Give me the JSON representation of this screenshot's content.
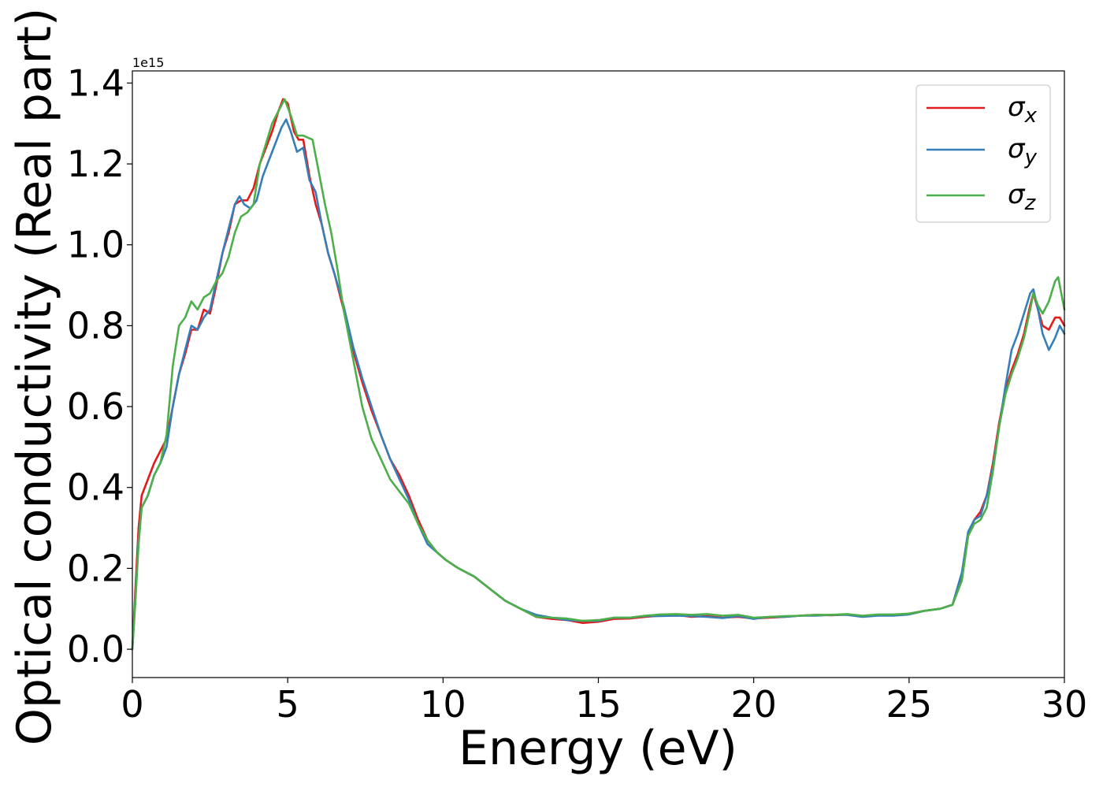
{
  "chart_data": {
    "type": "line",
    "xlabel": "Energy (eV)",
    "ylabel": "Optical conductivity (Real part)",
    "y_offset_text": "1e15",
    "xlim": [
      0,
      30
    ],
    "ylim": [
      -0.07,
      1.43
    ],
    "x_ticks": [
      0,
      5,
      10,
      15,
      20,
      25,
      30
    ],
    "x_tick_labels": [
      "0",
      "5",
      "10",
      "15",
      "20",
      "25",
      "30"
    ],
    "y_ticks": [
      0.0,
      0.2,
      0.4,
      0.6,
      0.8,
      1.0,
      1.2,
      1.4
    ],
    "y_tick_labels": [
      "0.0",
      "0.2",
      "0.4",
      "0.6",
      "0.8",
      "1.0",
      "1.2",
      "1.4"
    ],
    "grid": false,
    "legend_position": "top-right",
    "series": [
      {
        "name": "σ",
        "subscript": "x",
        "color": "#e41a1c",
        "points": [
          [
            0,
            0.0
          ],
          [
            0.1,
            0.15
          ],
          [
            0.2,
            0.3
          ],
          [
            0.3,
            0.38
          ],
          [
            0.5,
            0.42
          ],
          [
            0.7,
            0.46
          ],
          [
            0.9,
            0.49
          ],
          [
            1.1,
            0.52
          ],
          [
            1.3,
            0.6
          ],
          [
            1.5,
            0.68
          ],
          [
            1.7,
            0.73
          ],
          [
            1.9,
            0.79
          ],
          [
            2.1,
            0.79
          ],
          [
            2.3,
            0.84
          ],
          [
            2.5,
            0.83
          ],
          [
            2.7,
            0.9
          ],
          [
            2.9,
            0.98
          ],
          [
            3.1,
            1.03
          ],
          [
            3.3,
            1.1
          ],
          [
            3.5,
            1.11
          ],
          [
            3.7,
            1.11
          ],
          [
            3.9,
            1.14
          ],
          [
            4.1,
            1.2
          ],
          [
            4.3,
            1.24
          ],
          [
            4.5,
            1.28
          ],
          [
            4.7,
            1.33
          ],
          [
            4.85,
            1.36
          ],
          [
            5.0,
            1.35
          ],
          [
            5.2,
            1.28
          ],
          [
            5.35,
            1.26
          ],
          [
            5.5,
            1.26
          ],
          [
            5.7,
            1.17
          ],
          [
            5.9,
            1.1
          ],
          [
            6.1,
            1.05
          ],
          [
            6.3,
            0.98
          ],
          [
            6.5,
            0.93
          ],
          [
            6.8,
            0.84
          ],
          [
            7.1,
            0.74
          ],
          [
            7.4,
            0.66
          ],
          [
            7.7,
            0.59
          ],
          [
            8.0,
            0.53
          ],
          [
            8.3,
            0.47
          ],
          [
            8.6,
            0.43
          ],
          [
            8.9,
            0.38
          ],
          [
            9.2,
            0.32
          ],
          [
            9.5,
            0.27
          ],
          [
            9.8,
            0.24
          ],
          [
            10.1,
            0.22
          ],
          [
            10.5,
            0.2
          ],
          [
            11.0,
            0.18
          ],
          [
            11.5,
            0.15
          ],
          [
            12.0,
            0.12
          ],
          [
            12.5,
            0.1
          ],
          [
            13.0,
            0.08
          ],
          [
            13.5,
            0.075
          ],
          [
            14.0,
            0.072
          ],
          [
            14.5,
            0.065
          ],
          [
            15.0,
            0.068
          ],
          [
            15.5,
            0.075
          ],
          [
            16.0,
            0.076
          ],
          [
            16.5,
            0.08
          ],
          [
            17.0,
            0.083
          ],
          [
            17.5,
            0.085
          ],
          [
            18.0,
            0.08
          ],
          [
            18.5,
            0.082
          ],
          [
            19.0,
            0.078
          ],
          [
            19.5,
            0.08
          ],
          [
            20.0,
            0.076
          ],
          [
            20.5,
            0.078
          ],
          [
            21.0,
            0.08
          ],
          [
            21.5,
            0.083
          ],
          [
            22.0,
            0.085
          ],
          [
            22.5,
            0.084
          ],
          [
            23.0,
            0.086
          ],
          [
            23.5,
            0.082
          ],
          [
            24.0,
            0.085
          ],
          [
            24.5,
            0.084
          ],
          [
            25.0,
            0.088
          ],
          [
            25.5,
            0.095
          ],
          [
            26.0,
            0.1
          ],
          [
            26.4,
            0.11
          ],
          [
            26.7,
            0.18
          ],
          [
            26.9,
            0.28
          ],
          [
            27.1,
            0.32
          ],
          [
            27.3,
            0.34
          ],
          [
            27.5,
            0.38
          ],
          [
            27.7,
            0.46
          ],
          [
            27.9,
            0.56
          ],
          [
            28.1,
            0.64
          ],
          [
            28.3,
            0.69
          ],
          [
            28.5,
            0.73
          ],
          [
            28.7,
            0.78
          ],
          [
            28.9,
            0.85
          ],
          [
            29.0,
            0.88
          ],
          [
            29.15,
            0.84
          ],
          [
            29.3,
            0.8
          ],
          [
            29.5,
            0.79
          ],
          [
            29.7,
            0.82
          ],
          [
            29.85,
            0.82
          ],
          [
            30.0,
            0.8
          ]
        ]
      },
      {
        "name": "σ",
        "subscript": "y",
        "color": "#377eb8",
        "points": [
          [
            0,
            0.0
          ],
          [
            0.1,
            0.13
          ],
          [
            0.2,
            0.27
          ],
          [
            0.3,
            0.35
          ],
          [
            0.5,
            0.38
          ],
          [
            0.7,
            0.43
          ],
          [
            0.9,
            0.46
          ],
          [
            1.1,
            0.5
          ],
          [
            1.3,
            0.6
          ],
          [
            1.5,
            0.68
          ],
          [
            1.7,
            0.74
          ],
          [
            1.9,
            0.8
          ],
          [
            2.1,
            0.79
          ],
          [
            2.3,
            0.82
          ],
          [
            2.5,
            0.84
          ],
          [
            2.7,
            0.91
          ],
          [
            2.9,
            0.98
          ],
          [
            3.1,
            1.04
          ],
          [
            3.3,
            1.1
          ],
          [
            3.45,
            1.12
          ],
          [
            3.6,
            1.1
          ],
          [
            3.8,
            1.09
          ],
          [
            4.0,
            1.11
          ],
          [
            4.2,
            1.17
          ],
          [
            4.4,
            1.21
          ],
          [
            4.6,
            1.25
          ],
          [
            4.8,
            1.29
          ],
          [
            4.95,
            1.31
          ],
          [
            5.1,
            1.28
          ],
          [
            5.3,
            1.23
          ],
          [
            5.5,
            1.24
          ],
          [
            5.7,
            1.16
          ],
          [
            5.9,
            1.13
          ],
          [
            6.1,
            1.05
          ],
          [
            6.3,
            0.98
          ],
          [
            6.5,
            0.93
          ],
          [
            6.8,
            0.85
          ],
          [
            7.1,
            0.75
          ],
          [
            7.4,
            0.67
          ],
          [
            7.7,
            0.6
          ],
          [
            8.0,
            0.53
          ],
          [
            8.3,
            0.47
          ],
          [
            8.6,
            0.42
          ],
          [
            8.9,
            0.37
          ],
          [
            9.2,
            0.31
          ],
          [
            9.5,
            0.26
          ],
          [
            9.8,
            0.24
          ],
          [
            10.1,
            0.22
          ],
          [
            10.5,
            0.2
          ],
          [
            11.0,
            0.18
          ],
          [
            11.5,
            0.15
          ],
          [
            12.0,
            0.12
          ],
          [
            12.5,
            0.1
          ],
          [
            13.0,
            0.085
          ],
          [
            13.5,
            0.078
          ],
          [
            14.0,
            0.072
          ],
          [
            14.5,
            0.07
          ],
          [
            15.0,
            0.07
          ],
          [
            15.5,
            0.078
          ],
          [
            16.0,
            0.078
          ],
          [
            16.5,
            0.082
          ],
          [
            17.0,
            0.082
          ],
          [
            17.5,
            0.083
          ],
          [
            18.0,
            0.082
          ],
          [
            18.5,
            0.08
          ],
          [
            19.0,
            0.077
          ],
          [
            19.5,
            0.082
          ],
          [
            20.0,
            0.075
          ],
          [
            20.5,
            0.08
          ],
          [
            21.0,
            0.08
          ],
          [
            21.5,
            0.083
          ],
          [
            22.0,
            0.083
          ],
          [
            22.5,
            0.085
          ],
          [
            23.0,
            0.085
          ],
          [
            23.5,
            0.08
          ],
          [
            24.0,
            0.083
          ],
          [
            24.5,
            0.083
          ],
          [
            25.0,
            0.086
          ],
          [
            25.5,
            0.095
          ],
          [
            26.0,
            0.1
          ],
          [
            26.4,
            0.11
          ],
          [
            26.7,
            0.19
          ],
          [
            26.9,
            0.29
          ],
          [
            27.1,
            0.32
          ],
          [
            27.3,
            0.33
          ],
          [
            27.5,
            0.38
          ],
          [
            27.7,
            0.45
          ],
          [
            27.9,
            0.55
          ],
          [
            28.1,
            0.65
          ],
          [
            28.3,
            0.74
          ],
          [
            28.5,
            0.78
          ],
          [
            28.7,
            0.83
          ],
          [
            28.9,
            0.88
          ],
          [
            29.0,
            0.89
          ],
          [
            29.15,
            0.84
          ],
          [
            29.3,
            0.78
          ],
          [
            29.5,
            0.74
          ],
          [
            29.7,
            0.77
          ],
          [
            29.85,
            0.8
          ],
          [
            30.0,
            0.78
          ]
        ]
      },
      {
        "name": "σ",
        "subscript": "z",
        "color": "#4daf4a",
        "points": [
          [
            0,
            0.0
          ],
          [
            0.1,
            0.12
          ],
          [
            0.2,
            0.26
          ],
          [
            0.3,
            0.35
          ],
          [
            0.5,
            0.38
          ],
          [
            0.7,
            0.43
          ],
          [
            0.9,
            0.46
          ],
          [
            1.1,
            0.53
          ],
          [
            1.3,
            0.7
          ],
          [
            1.5,
            0.8
          ],
          [
            1.7,
            0.82
          ],
          [
            1.9,
            0.86
          ],
          [
            2.1,
            0.84
          ],
          [
            2.3,
            0.87
          ],
          [
            2.5,
            0.88
          ],
          [
            2.7,
            0.91
          ],
          [
            2.9,
            0.93
          ],
          [
            3.1,
            0.97
          ],
          [
            3.3,
            1.03
          ],
          [
            3.5,
            1.07
          ],
          [
            3.7,
            1.08
          ],
          [
            3.9,
            1.1
          ],
          [
            4.1,
            1.2
          ],
          [
            4.3,
            1.25
          ],
          [
            4.5,
            1.3
          ],
          [
            4.7,
            1.33
          ],
          [
            4.9,
            1.36
          ],
          [
            5.1,
            1.32
          ],
          [
            5.3,
            1.27
          ],
          [
            5.5,
            1.27
          ],
          [
            5.8,
            1.26
          ],
          [
            6.0,
            1.18
          ],
          [
            6.2,
            1.1
          ],
          [
            6.4,
            1.03
          ],
          [
            6.6,
            0.94
          ],
          [
            6.8,
            0.84
          ],
          [
            7.1,
            0.72
          ],
          [
            7.4,
            0.6
          ],
          [
            7.7,
            0.52
          ],
          [
            8.0,
            0.47
          ],
          [
            8.3,
            0.42
          ],
          [
            8.6,
            0.39
          ],
          [
            8.9,
            0.36
          ],
          [
            9.2,
            0.31
          ],
          [
            9.5,
            0.27
          ],
          [
            9.8,
            0.24
          ],
          [
            10.1,
            0.22
          ],
          [
            10.5,
            0.2
          ],
          [
            11.0,
            0.18
          ],
          [
            11.5,
            0.15
          ],
          [
            12.0,
            0.12
          ],
          [
            12.5,
            0.1
          ],
          [
            13.0,
            0.08
          ],
          [
            13.5,
            0.078
          ],
          [
            14.0,
            0.076
          ],
          [
            14.5,
            0.07
          ],
          [
            15.0,
            0.072
          ],
          [
            15.5,
            0.078
          ],
          [
            16.0,
            0.078
          ],
          [
            16.5,
            0.083
          ],
          [
            17.0,
            0.086
          ],
          [
            17.5,
            0.087
          ],
          [
            18.0,
            0.085
          ],
          [
            18.5,
            0.087
          ],
          [
            19.0,
            0.083
          ],
          [
            19.5,
            0.085
          ],
          [
            20.0,
            0.078
          ],
          [
            20.5,
            0.08
          ],
          [
            21.0,
            0.082
          ],
          [
            21.5,
            0.083
          ],
          [
            22.0,
            0.085
          ],
          [
            22.5,
            0.085
          ],
          [
            23.0,
            0.087
          ],
          [
            23.5,
            0.083
          ],
          [
            24.0,
            0.086
          ],
          [
            24.5,
            0.086
          ],
          [
            25.0,
            0.088
          ],
          [
            25.5,
            0.095
          ],
          [
            26.0,
            0.1
          ],
          [
            26.4,
            0.11
          ],
          [
            26.7,
            0.17
          ],
          [
            26.9,
            0.28
          ],
          [
            27.1,
            0.31
          ],
          [
            27.3,
            0.32
          ],
          [
            27.5,
            0.35
          ],
          [
            27.7,
            0.44
          ],
          [
            27.9,
            0.55
          ],
          [
            28.1,
            0.63
          ],
          [
            28.3,
            0.68
          ],
          [
            28.5,
            0.72
          ],
          [
            28.7,
            0.77
          ],
          [
            28.9,
            0.84
          ],
          [
            29.0,
            0.88
          ],
          [
            29.15,
            0.85
          ],
          [
            29.3,
            0.83
          ],
          [
            29.5,
            0.86
          ],
          [
            29.7,
            0.91
          ],
          [
            29.8,
            0.92
          ],
          [
            30.0,
            0.84
          ]
        ]
      }
    ]
  }
}
